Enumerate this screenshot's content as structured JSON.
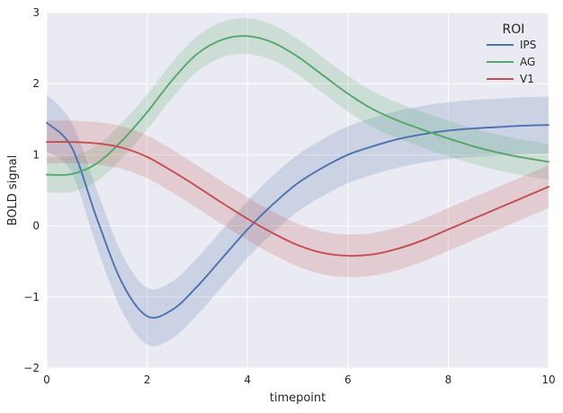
{
  "chart_data": {
    "type": "line",
    "xlabel": "timepoint",
    "ylabel": "BOLD signal",
    "xlim": [
      0,
      10
    ],
    "ylim": [
      -2,
      3
    ],
    "xticks": [
      "0",
      "2",
      "4",
      "6",
      "8",
      "10"
    ],
    "yticks": [
      "−2",
      "−1",
      "0",
      "1",
      "2",
      "3"
    ],
    "grid": true,
    "legend": {
      "title": "ROI",
      "placement": "top-right"
    },
    "series": [
      {
        "name": "IPS",
        "color": "#4c72b0",
        "x": [
          0,
          0.5,
          1,
          1.5,
          2,
          2.5,
          3,
          3.5,
          4,
          4.5,
          5,
          5.5,
          6,
          6.5,
          7,
          7.5,
          8,
          8.5,
          9,
          9.5,
          10
        ],
        "y": [
          1.45,
          1.1,
          0.1,
          -0.8,
          -1.27,
          -1.18,
          -0.85,
          -0.45,
          -0.05,
          0.3,
          0.6,
          0.82,
          1.0,
          1.12,
          1.22,
          1.29,
          1.34,
          1.37,
          1.39,
          1.41,
          1.42
        ],
        "lower": [
          1.05,
          0.75,
          -0.3,
          -1.2,
          -1.67,
          -1.58,
          -1.25,
          -0.85,
          -0.45,
          -0.1,
          0.2,
          0.42,
          0.6,
          0.72,
          0.82,
          0.89,
          0.94,
          0.97,
          0.99,
          1.01,
          1.02
        ],
        "upper": [
          1.85,
          1.45,
          0.5,
          -0.4,
          -0.87,
          -0.78,
          -0.45,
          -0.05,
          0.35,
          0.7,
          1.0,
          1.22,
          1.4,
          1.52,
          1.62,
          1.69,
          1.74,
          1.77,
          1.79,
          1.81,
          1.82
        ]
      },
      {
        "name": "AG",
        "color": "#55a868",
        "x": [
          0,
          0.5,
          1,
          1.5,
          2,
          2.5,
          3,
          3.5,
          4,
          4.5,
          5,
          5.5,
          6,
          6.5,
          7,
          7.5,
          8,
          8.5,
          9,
          9.5,
          10
        ],
        "y": [
          0.72,
          0.73,
          0.88,
          1.2,
          1.6,
          2.05,
          2.42,
          2.62,
          2.67,
          2.58,
          2.38,
          2.12,
          1.86,
          1.64,
          1.48,
          1.35,
          1.23,
          1.12,
          1.03,
          0.96,
          0.9
        ],
        "lower": [
          0.47,
          0.48,
          0.63,
          0.95,
          1.35,
          1.8,
          2.17,
          2.37,
          2.42,
          2.33,
          2.13,
          1.87,
          1.61,
          1.39,
          1.23,
          1.1,
          0.98,
          0.87,
          0.78,
          0.71,
          0.65
        ],
        "upper": [
          0.97,
          0.98,
          1.13,
          1.45,
          1.85,
          2.3,
          2.67,
          2.87,
          2.92,
          2.83,
          2.63,
          2.37,
          2.11,
          1.89,
          1.73,
          1.6,
          1.48,
          1.37,
          1.28,
          1.21,
          1.15
        ]
      },
      {
        "name": "V1",
        "color": "#c44e52",
        "x": [
          0,
          0.5,
          1,
          1.5,
          2,
          2.5,
          3,
          3.5,
          4,
          4.5,
          5,
          5.5,
          6,
          6.5,
          7,
          7.5,
          8,
          8.5,
          9,
          9.5,
          10
        ],
        "y": [
          1.18,
          1.18,
          1.16,
          1.1,
          0.97,
          0.77,
          0.55,
          0.32,
          0.1,
          -0.1,
          -0.27,
          -0.38,
          -0.42,
          -0.4,
          -0.32,
          -0.2,
          -0.05,
          0.1,
          0.25,
          0.4,
          0.55
        ],
        "lower": [
          0.88,
          0.88,
          0.86,
          0.8,
          0.67,
          0.47,
          0.25,
          0.02,
          -0.2,
          -0.4,
          -0.57,
          -0.68,
          -0.72,
          -0.7,
          -0.62,
          -0.5,
          -0.35,
          -0.2,
          -0.05,
          0.1,
          0.25
        ],
        "upper": [
          1.48,
          1.48,
          1.46,
          1.4,
          1.27,
          1.07,
          0.85,
          0.62,
          0.4,
          0.2,
          0.03,
          -0.08,
          -0.12,
          -0.1,
          -0.02,
          0.1,
          0.25,
          0.4,
          0.55,
          0.7,
          0.85
        ]
      }
    ]
  }
}
